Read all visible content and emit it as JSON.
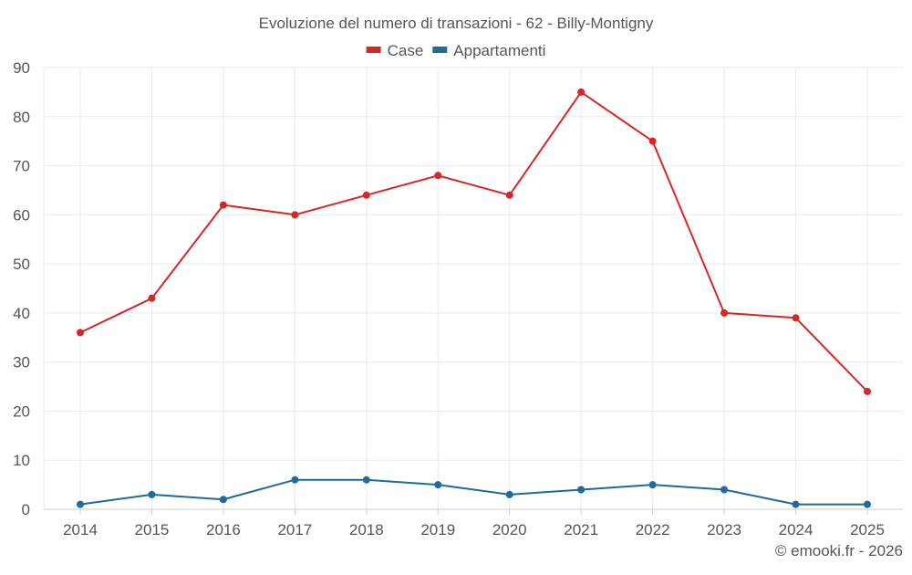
{
  "chart_data": {
    "type": "line",
    "title": "Evoluzione del numero di transazioni - 62 - Billy-Montigny",
    "categories": [
      "2014",
      "2015",
      "2016",
      "2017",
      "2018",
      "2019",
      "2020",
      "2021",
      "2022",
      "2023",
      "2024",
      "2025"
    ],
    "series": [
      {
        "name": "Case",
        "color": "#d62728",
        "values": [
          36,
          43,
          62,
          60,
          64,
          68,
          64,
          85,
          75,
          40,
          39,
          24
        ]
      },
      {
        "name": "Appartamenti",
        "color": "#1f6b9a",
        "values": [
          1,
          3,
          2,
          6,
          6,
          5,
          3,
          4,
          5,
          4,
          1,
          1
        ]
      }
    ],
    "ylim": [
      0,
      90
    ],
    "yticks": [
      "0",
      "10",
      "20",
      "30",
      "40",
      "50",
      "60",
      "70",
      "80",
      "90"
    ],
    "grid": true,
    "legend_position": "top-center"
  },
  "credit": "© emooki.fr - 2026"
}
